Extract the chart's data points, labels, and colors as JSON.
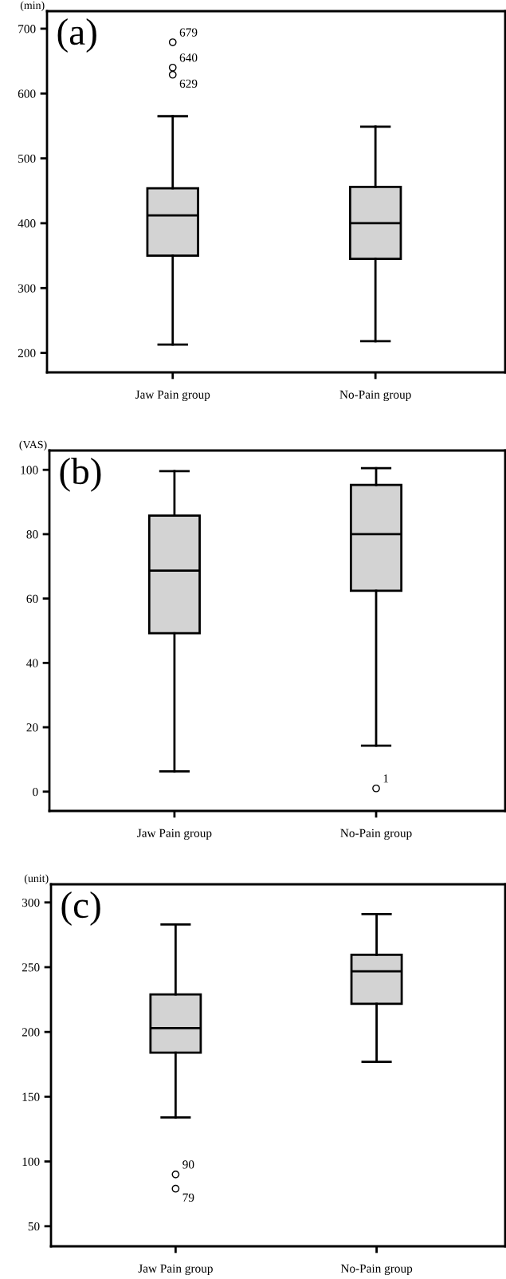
{
  "chart_data": [
    {
      "type": "box",
      "title": "(a)",
      "ylabel": "(min)",
      "categories": [
        "Jaw Pain group",
        "No-Pain group"
      ],
      "ylim": [
        170,
        727
      ],
      "yticks": [
        200,
        300,
        400,
        500,
        600,
        700
      ],
      "color": "#d3d3d3",
      "marker": "circle",
      "grid": false,
      "boxes": [
        {
          "low": 213,
          "q1": 350,
          "median": 412,
          "q3": 454,
          "high": 565,
          "outliers": [
            679,
            640,
            629
          ]
        },
        {
          "low": 218,
          "q1": 345,
          "median": 400,
          "q3": 456,
          "high": 549
        }
      ],
      "annotations": [
        "679",
        "640",
        "629"
      ]
    },
    {
      "type": "box",
      "title": "(b)",
      "ylabel": "(VAS)",
      "categories": [
        "Jaw Pain group",
        "No-Pain group"
      ],
      "ylim": [
        -6,
        106
      ],
      "yticks": [
        0,
        20,
        40,
        60,
        80,
        100
      ],
      "color": "#d3d3d3",
      "marker": "circle",
      "grid": false,
      "boxes": [
        {
          "low": 6.3,
          "q1": 49.2,
          "median": 68.7,
          "q3": 85.8,
          "high": 99.6
        },
        {
          "low": 14.3,
          "q1": 62.4,
          "median": 80,
          "q3": 95.3,
          "high": 100.5,
          "outliers": [
            1
          ]
        }
      ],
      "annotations": [
        "1"
      ]
    },
    {
      "type": "box",
      "title": "(c)",
      "ylabel": "(unit)",
      "categories": [
        "Jaw Pain group",
        "No-Pain group"
      ],
      "ylim": [
        34.5,
        314
      ],
      "yticks": [
        50,
        100,
        150,
        200,
        250,
        300
      ],
      "color": "#d3d3d3",
      "marker": "circle",
      "grid": false,
      "boxes": [
        {
          "low": 134,
          "q1": 184,
          "median": 203,
          "q3": 229,
          "high": 283,
          "outliers": [
            90,
            79
          ]
        },
        {
          "low": 177,
          "q1": 221.7,
          "median": 246.8,
          "q3": 259.6,
          "high": 291
        }
      ],
      "annotations": [
        "90",
        "79"
      ]
    }
  ]
}
